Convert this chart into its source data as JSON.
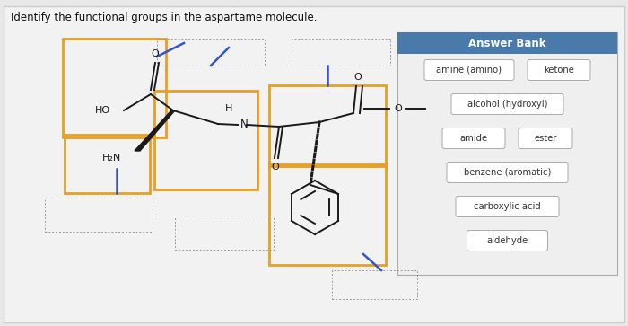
{
  "title": "Identify the functional groups in the aspartame molecule.",
  "bg": "#e8e8e8",
  "panel_bg": "#f2f2f2",
  "white": "#ffffff",
  "answer_bank": {
    "header": "Answer Bank",
    "header_bg": "#4a7aaa",
    "header_fg": "#ffffff",
    "border": "#aaaaaa",
    "bg": "#efefef",
    "items": [
      [
        [
          "amine (amino)",
          95
        ],
        [
          "ketone",
          65
        ]
      ],
      [
        [
          "alcohol (hydroxyl)",
          120
        ]
      ],
      [
        [
          "amide",
          65
        ],
        [
          "ester",
          55
        ]
      ],
      [
        [
          "benzene (aromatic)",
          130
        ]
      ],
      [
        [
          "carboxylic acid",
          110
        ]
      ],
      [
        [
          "aldehyde",
          85
        ]
      ]
    ]
  },
  "orange": "#e8a020",
  "dashed": "#999999",
  "mol": "#1a1a1a",
  "blue": "#3355cc"
}
